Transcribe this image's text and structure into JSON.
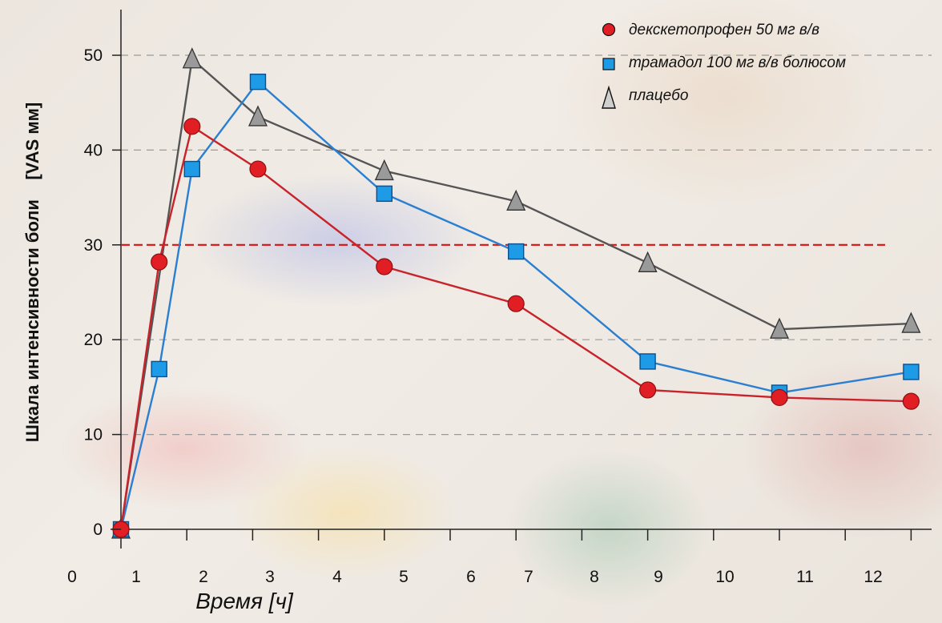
{
  "chart_data": {
    "type": "line",
    "xlabel": "Время [ч]",
    "ylabel": "Шкала интенсивности боли    [VAS мм]",
    "xlim": [
      0,
      12.5
    ],
    "ylim": [
      0,
      50
    ],
    "x_ticks": [
      "0",
      "1",
      "2",
      "3",
      "4",
      "5",
      "6",
      "7",
      "8",
      "9",
      "10",
      "11",
      "12"
    ],
    "y_ticks": [
      "0",
      "10",
      "20",
      "30",
      "40",
      "50"
    ],
    "grid": "horizontal dashed",
    "threshold_line": {
      "y": 30,
      "color": "#e01010"
    },
    "legend_position": "top-right",
    "series": [
      {
        "name": "декскетопрофен 50 мг в/в",
        "marker": "circle",
        "color": "#c8232a",
        "marker_fill": "#e01e24",
        "x": [
          0.75,
          1.33,
          1.83,
          2.83,
          4.75,
          6.75,
          8.75,
          10.75,
          12.75
        ],
        "y": [
          0,
          28.2,
          42.5,
          38,
          27.7,
          23.8,
          14.7,
          13.9,
          13.5
        ]
      },
      {
        "name": "трамадол 100  мг в/в болюсом",
        "marker": "square",
        "color": "#2a7fd0",
        "marker_fill": "#1e9be6",
        "x": [
          0.75,
          1.33,
          1.83,
          2.83,
          4.75,
          6.75,
          8.75,
          10.75,
          12.75
        ],
        "y": [
          0,
          16.9,
          38,
          47.2,
          35.4,
          29.3,
          17.7,
          14.4,
          16.6
        ]
      },
      {
        "name": "плацебо",
        "marker": "triangle",
        "color": "#555555",
        "marker_fill": "#9a9a9a",
        "x": [
          0.75,
          1.83,
          2.83,
          4.75,
          6.75,
          8.75,
          10.75,
          12.75
        ],
        "y": [
          0,
          49.6,
          43.5,
          37.8,
          34.6,
          28.1,
          21.1,
          21.7
        ]
      }
    ]
  }
}
